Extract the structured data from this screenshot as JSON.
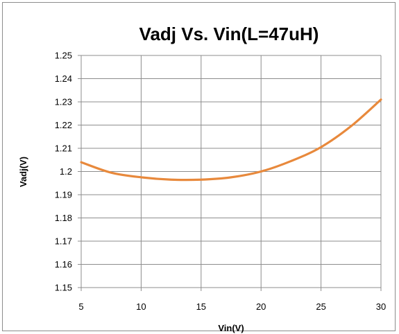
{
  "chart_data": {
    "type": "line",
    "title": "Vadj Vs. Vin(L=47uH)",
    "xlabel": "Vin(V)",
    "ylabel": "Vadj(V)",
    "xlim": [
      5,
      30
    ],
    "ylim": [
      1.15,
      1.25
    ],
    "xticks": [
      "5",
      "10",
      "15",
      "20",
      "25",
      "30"
    ],
    "yticks": [
      "1.15",
      "1.16",
      "1.17",
      "1.18",
      "1.19",
      "1.2",
      "1.21",
      "1.22",
      "1.23",
      "1.24",
      "1.25"
    ],
    "grid": true,
    "series": [
      {
        "color": "#E8893C",
        "x": [
          5,
          7.5,
          10,
          12.5,
          15,
          17.5,
          20,
          22.5,
          25,
          27.5,
          30
        ],
        "y": [
          1.204,
          1.1995,
          1.1975,
          1.1965,
          1.1965,
          1.1975,
          1.2,
          1.2045,
          1.2105,
          1.2195,
          1.231
        ]
      }
    ]
  }
}
